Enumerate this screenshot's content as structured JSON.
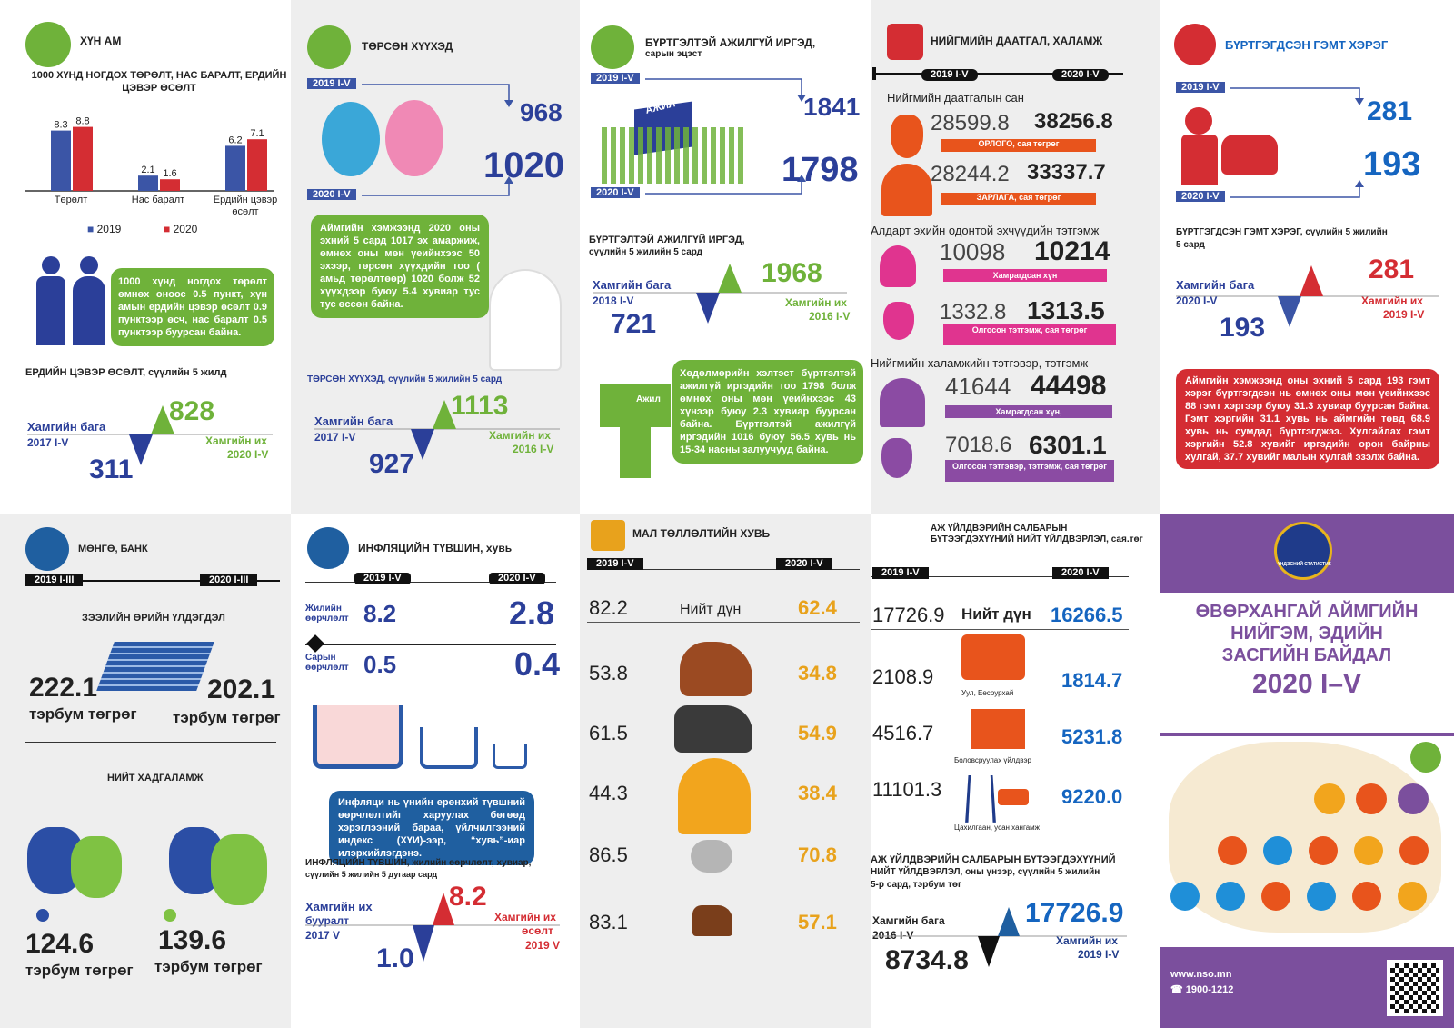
{
  "p1": {
    "title": "ХҮН АМ",
    "subtitle": "1000 ХҮНД НОГДОХ ТӨРӨЛТ, НАС БАРАЛТ, ЕРДИЙН ЦЭВЭР ӨСӨЛТ",
    "legend": [
      "2019",
      "2020"
    ],
    "bubble": "1000 хүнд ногдох төрөлт өмнөх оноос 0.5 пункт, хүн амын ердийн цэвэр өсөлт 0.9 пунктээр өсч, нас баралт 0.5 пунктээр буурсан байна.",
    "trend_title": "ЕРДИЙН ЦЭВЭР ӨСӨЛТ, сүүлийн 5 жилд",
    "min_label": "Хамгийн бага",
    "min_period": "2017 I-V",
    "min_value": "311",
    "max_value": "828",
    "max_label": "Хамгийн их",
    "max_period": "2020 I-V"
  },
  "chart_data": {
    "type": "bar",
    "categories": [
      "Төрөлт",
      "Нас баралт",
      "Ердийн цэвэр өсөлт"
    ],
    "series": [
      {
        "name": "2019",
        "values": [
          8.3,
          2.1,
          6.2
        ]
      },
      {
        "name": "2020",
        "values": [
          8.8,
          1.6,
          7.1
        ]
      }
    ],
    "colors": [
      "#3b55a6",
      "#d42d33"
    ]
  },
  "p2": {
    "title": "ТӨРСӨН ХҮҮХЭД",
    "start_tag": "2019 I-V",
    "start_value": "968",
    "end_tag": "2020 I-V",
    "end_value": "1020",
    "bubble": "Аймгийн хэмжээнд 2020 оны эхний 5 сард 1017 эх амаржиж, өмнөх оны мөн үеийнхээс 50 эхээр, төрсөн хүүхдийн тоо ( амьд төрөлтөөр) 1020 болж 52 хүүхдээр буюу 5.4 хувиар тус тус өссөн байна.",
    "trend_title": "ТӨРСӨН ХҮҮХЭД, сүүлийн 5 жилийн 5 сард",
    "min_label": "Хамгийн бага",
    "min_period": "2017 I-V",
    "min_value": "927",
    "max_value": "1113",
    "max_label": "Хамгийн их",
    "max_period": "2016 I-V"
  },
  "p3": {
    "title": "БҮРТГЭЛТЭЙ АЖИЛГҮЙ ИРГЭД,",
    "title2": "сарын эцэст",
    "start_tag": "2019 I-V",
    "start_value": "1841",
    "end_tag": "2020 I-V",
    "end_value": "1798",
    "building": "АЖИЛ",
    "trend_title": "БҮРТГЭЛТЭЙ АЖИЛГҮЙ ИРГЭД,",
    "trend_title2": "сүүлийн 5 жилийн 5 сард",
    "min_label": "Хамгийн бага",
    "min_period": "2018 I-V",
    "min_value": "721",
    "max_value": "1968",
    "max_label": "Хамгийн их",
    "max_period": "2016 I-V",
    "paper": "Ажил",
    "bubble": "Хөдөлмөрийн хэлтэст бүртгэлтэй ажилгүй иргэдийн тоо 1798 болж өмнөх оны мөн үеийнхээс 43 хүнээр буюу 2.3 хувиар буурсан байна. Бүртгэлтэй ажилгүй иргэдийн 1016 буюу 56.5 хувь нь 15-34 насны залуучууд байна."
  },
  "p4": {
    "title": "НИЙГМИЙН ДААТГАЛ, ХАЛАМЖ",
    "y1": "2019 I-V",
    "y2": "2020 I-V",
    "s1": "Нийгмийн даатгалын сан",
    "r1a": "28599.8",
    "r1b": "38256.8",
    "r1l": "ОРЛОГО, сая төгрөг",
    "r2a": "28244.2",
    "r2b": "33337.7",
    "r2l": "ЗАРЛАГА, сая төгрөг",
    "s2": "Алдарт эхийн одонтой эхчүүдийн тэтгэмж",
    "r3a": "10098",
    "r3b": "10214",
    "r3l": "Хамрагдсан хүн",
    "r4a": "1332.8",
    "r4b": "1313.5",
    "r4l": "Олгосон тэтгэмж, сая төгрөг",
    "s3": "Нийгмийн халамжийн тэтгэвэр, тэтгэмж",
    "r5a": "41644",
    "r5b": "44498",
    "r5l": "Хамрагдсан хүн,",
    "r6a": "7018.6",
    "r6b": "6301.1",
    "r6l": "Олгосон тэтгэвэр, тэтгэмж, сая төгрөг"
  },
  "p5": {
    "title": "БҮРТГЭГДСЭН ГЭМТ ХЭРЭГ",
    "start_tag": "2019 I-V",
    "start_value": "281",
    "end_tag": "2020 I-V",
    "end_value": "193",
    "trend_title": "БҮРТГЭГДСЭН ГЭМТ ХЭРЭГ, сүүлийн 5 жилийн",
    "trend_title2": "5 сард",
    "min_label": "Хамгийн бага",
    "min_period": "2020 I-V",
    "min_value": "193",
    "max_value": "281",
    "max_label": "Хамгийн их",
    "max_period": "2019 I-V",
    "bubble": "Аймгийн хэмжээнд оны эхний 5 сард 193 гэмт хэрэг бүртгэгдсэн нь өмнөх оны мөн үеийнхээс 88 гэмт хэргээр буюу 31.3 хувиар буурсан байна. Гэмт хэргийн 31.1 хувь нь аймгийн төвд 68.9 хувь нь сумдад бүртгэгджээ. Хулгайлах гэмт хэргийн 52.8 хувийг иргэдийн орон байрны хулгай, 37.7 хувийг малын хулгай эзэлж байна."
  },
  "p6": {
    "title": "МӨНГӨ, БАНК",
    "y1": "2019 I-III",
    "y2": "2020 I-III",
    "loan_title": "ЗЭЭЛИЙН ӨРИЙН ҮЛДЭГДЭЛ",
    "loan_a": "222.1",
    "loan_b": "202.1",
    "unit": "тэрбум төгрөг",
    "sav_title": "НИЙТ ХАДГАЛАМЖ",
    "sav_a": "124.6",
    "sav_b": "139.6"
  },
  "p7": {
    "title": "ИНФЛЯЦИЙН ТҮВШИН, хувь",
    "y1": "2019 I-V",
    "y2": "2020 I-V",
    "annual_label": "Жилийн өөрчлөлт",
    "annual_a": "8.2",
    "annual_b": "2.8",
    "monthly_label": "Сарын өөрчлөлт",
    "monthly_a": "0.5",
    "monthly_b": "0.4",
    "bubble": "Инфляци нь үнийн ерөнхий түвшний өөрчлөлтийг харуулах бөгөөд хэрэглээний бараа, үйлчилгээний индекс (ХҮИ)-ээр, “хувь”-иар илэрхийлэгдэнэ.",
    "trend_title": "ИНФЛЯЦИЙН ТҮВШИН, жилийн өөрчлөлт, хувиар,",
    "trend_title2": "сүүлийн 5 жилийн 5 дугаар сард",
    "min_label": "Хамгийн их",
    "min_label2": "бууралт",
    "min_period": "2017 V",
    "min_value": "1.0",
    "max_value": "8.2",
    "max_label": "Хамгийн их",
    "max_label2": "өсөлт",
    "max_period": "2019 V"
  },
  "p8": {
    "title": "МАЛ ТӨЛЛӨЛТИЙН ХУВЬ",
    "y1": "2019 I-V",
    "y2": "2020 I-V",
    "total_label": "Нийт дүн",
    "total_a": "82.2",
    "total_b": "62.4",
    "rows": [
      {
        "a": "53.8",
        "b": "34.8"
      },
      {
        "a": "61.5",
        "b": "54.9"
      },
      {
        "a": "44.3",
        "b": "38.4"
      },
      {
        "a": "86.5",
        "b": "70.8"
      },
      {
        "a": "83.1",
        "b": "57.1"
      }
    ]
  },
  "p9": {
    "title": "АЖ ҮЙЛДВЭРИЙН САЛБАРЫН",
    "title2": "БҮТЭЭГДЭХҮҮНИЙ НИЙТ ҮЙЛДВЭРЛЭЛ, сая.төг",
    "y1": "2019 I-V",
    "y2": "2020 I-V",
    "total_label": "Нийт дүн",
    "total_a": "17726.9",
    "total_b": "16266.5",
    "rows": [
      {
        "a": "2108.9",
        "b": "1814.7",
        "l": "Уул, Еөсоурхай"
      },
      {
        "a": "4516.7",
        "b": "5231.8",
        "l": "Боловсруулах үйлдвэр"
      },
      {
        "a": "11101.3",
        "b": "9220.0",
        "l": "Цахилгаан, усан хангамж"
      }
    ],
    "trend_title": "АЖ ҮЙЛДВЭРИЙН САЛБАРЫН БҮТЭЭГДЭХҮҮНИЙ",
    "trend_title2": "НИЙТ ҮЙЛДВЭРЛЭЛ, оны үнээр, сүүлийн 5 жилийн",
    "trend_title3": "5-р сард, тэрбум төг",
    "min_label": "Хамгийн бага",
    "min_period": "2016 I-V",
    "min_value": "8734.8",
    "max_value": "17726.9",
    "max_label": "Хамгийн их",
    "max_period": "2019 I-V"
  },
  "p10": {
    "seal": "ҮНДЭСНИЙ СТАТИСТИК",
    "title": [
      "ӨВӨРХАНГАЙ АЙМГИЙН",
      "НИЙГЭМ, ЭДИЙН",
      "ЗАСГИЙН БАЙДАЛ"
    ],
    "period": "2020 I–V",
    "web": "www.nso.mn",
    "phone": "☎ 1900-1212"
  },
  "colors": {
    "blue": "#2b3f99",
    "green": "#6fb23a",
    "red": "#d42d33",
    "purple": "#7b4f9d",
    "navy": "#1f3b8a"
  }
}
